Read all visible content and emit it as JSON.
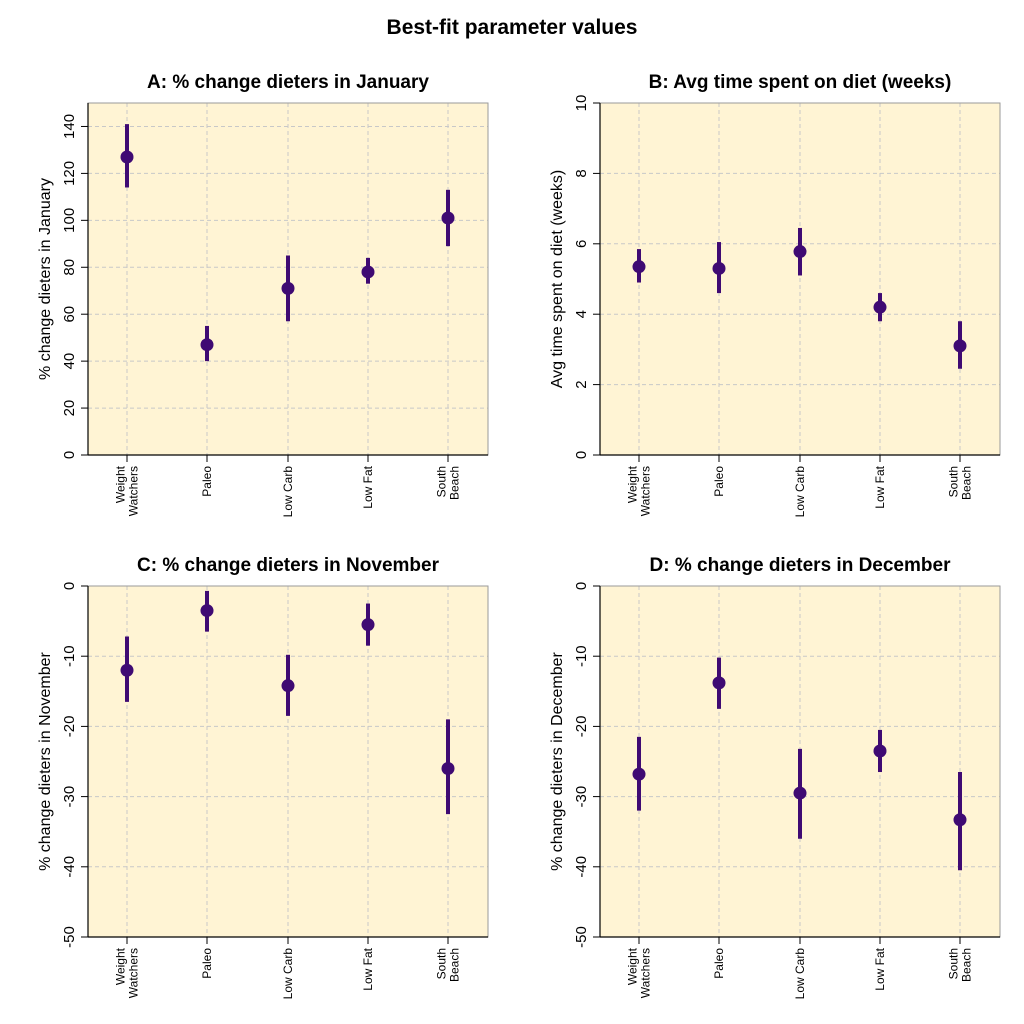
{
  "figure": {
    "title": "Best-fit parameter values",
    "panel_bg": "#fff4d4",
    "point_color": "#3f0a73",
    "grid_color": "#c8c8c8"
  },
  "chart_data": [
    {
      "type": "scatter",
      "title": "A: % change dieters in January",
      "xlabel": "",
      "ylabel": "% change dieters in January",
      "categories": [
        "Weight Watchers",
        "Paleo",
        "Low Carb",
        "Low Fat",
        "South Beach"
      ],
      "category_lines": [
        [
          "Weight",
          "Watchers"
        ],
        [
          "Paleo"
        ],
        [
          "Low Carb"
        ],
        [
          "Low Fat"
        ],
        [
          "South",
          "Beach"
        ]
      ],
      "values": [
        127,
        47,
        71,
        78,
        101
      ],
      "lower": [
        114,
        40,
        57,
        73,
        89
      ],
      "upper": [
        141,
        55,
        85,
        84,
        113
      ],
      "ylim": [
        0,
        150
      ],
      "yticks": [
        0,
        20,
        40,
        60,
        80,
        100,
        120,
        140
      ],
      "grid": true
    },
    {
      "type": "scatter",
      "title": "B: Avg time spent on diet (weeks)",
      "xlabel": "",
      "ylabel": "Avg time spent on diet (weeks)",
      "categories": [
        "Weight Watchers",
        "Paleo",
        "Low Carb",
        "Low Fat",
        "South Beach"
      ],
      "category_lines": [
        [
          "Weight",
          "Watchers"
        ],
        [
          "Paleo"
        ],
        [
          "Low Carb"
        ],
        [
          "Low Fat"
        ],
        [
          "South",
          "Beach"
        ]
      ],
      "values": [
        5.35,
        5.3,
        5.78,
        4.2,
        3.1
      ],
      "lower": [
        4.9,
        4.6,
        5.1,
        3.8,
        2.45
      ],
      "upper": [
        5.85,
        6.05,
        6.45,
        4.6,
        3.8
      ],
      "ylim": [
        0,
        10
      ],
      "yticks": [
        0,
        2,
        4,
        6,
        8,
        10
      ],
      "grid": true
    },
    {
      "type": "scatter",
      "title": "C: % change dieters in November",
      "xlabel": "",
      "ylabel": "% change dieters in November",
      "categories": [
        "Weight Watchers",
        "Paleo",
        "Low Carb",
        "Low Fat",
        "South Beach"
      ],
      "category_lines": [
        [
          "Weight",
          "Watchers"
        ],
        [
          "Paleo"
        ],
        [
          "Low Carb"
        ],
        [
          "Low Fat"
        ],
        [
          "South",
          "Beach"
        ]
      ],
      "values": [
        -12,
        -3.5,
        -14.2,
        -5.5,
        -26
      ],
      "lower": [
        -16.5,
        -6.5,
        -18.5,
        -8.5,
        -32.5
      ],
      "upper": [
        -7.2,
        -0.7,
        -9.8,
        -2.5,
        -19
      ],
      "ylim": [
        -50,
        0
      ],
      "yticks": [
        -50,
        -40,
        -30,
        -20,
        -10,
        0
      ],
      "grid": true
    },
    {
      "type": "scatter",
      "title": "D: % change dieters in December",
      "xlabel": "",
      "ylabel": "% change dieters in December",
      "categories": [
        "Weight Watchers",
        "Paleo",
        "Low Carb",
        "Low Fat",
        "South Beach"
      ],
      "category_lines": [
        [
          "Weight",
          "Watchers"
        ],
        [
          "Paleo"
        ],
        [
          "Low Carb"
        ],
        [
          "Low Fat"
        ],
        [
          "South",
          "Beach"
        ]
      ],
      "values": [
        -26.8,
        -13.8,
        -29.5,
        -23.5,
        -33.3
      ],
      "lower": [
        -32,
        -17.5,
        -36,
        -26.5,
        -40.5
      ],
      "upper": [
        -21.5,
        -10.2,
        -23.2,
        -20.5,
        -26.5
      ],
      "ylim": [
        -50,
        0
      ],
      "yticks": [
        -50,
        -40,
        -30,
        -20,
        -10,
        0
      ],
      "grid": true
    }
  ]
}
